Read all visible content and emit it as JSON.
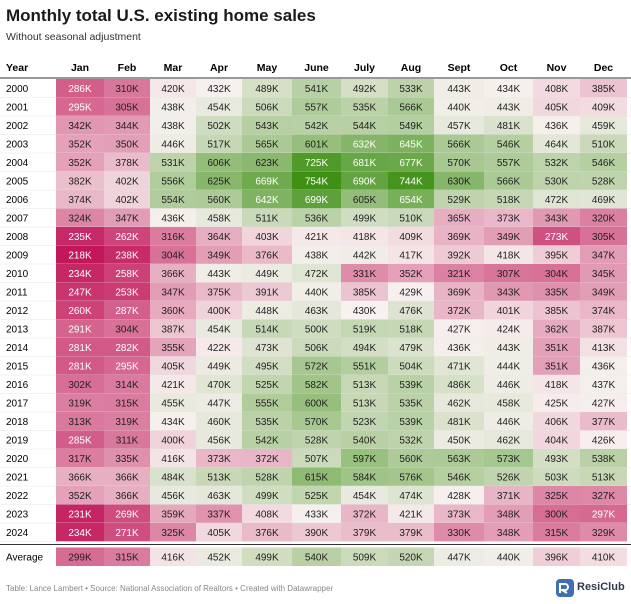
{
  "header": {
    "title": "Monthly total U.S. existing home sales",
    "subtitle": "Without seasonal adjustment"
  },
  "footer": {
    "source": "Table: Lance Lambert • Source: National Association of Realtors • Created with Datawrapper",
    "brand": "ResiClub"
  },
  "chart_data": {
    "type": "heatmap",
    "title": "Monthly total U.S. existing home sales",
    "subtitle": "Without seasonal adjustment",
    "corner_label": "Year",
    "columns": [
      "Jan",
      "Feb",
      "Mar",
      "Apr",
      "May",
      "June",
      "July",
      "Aug",
      "Sept",
      "Oct",
      "Nov",
      "Dec"
    ],
    "rows": [
      "2000",
      "2001",
      "2002",
      "2003",
      "2004",
      "2005",
      "2006",
      "2007",
      "2008",
      "2009",
      "2010",
      "2011",
      "2012",
      "2013",
      "2014",
      "2015",
      "2016",
      "2017",
      "2018",
      "2019",
      "2020",
      "2021",
      "2022",
      "2023",
      "2024"
    ],
    "values": [
      [
        286,
        310,
        420,
        432,
        489,
        541,
        492,
        533,
        443,
        434,
        408,
        385
      ],
      [
        295,
        305,
        438,
        454,
        506,
        557,
        535,
        566,
        440,
        443,
        405,
        409
      ],
      [
        342,
        344,
        438,
        502,
        543,
        542,
        544,
        549,
        457,
        481,
        436,
        459
      ],
      [
        352,
        350,
        446,
        517,
        565,
        601,
        632,
        645,
        566,
        546,
        464,
        510
      ],
      [
        352,
        378,
        531,
        606,
        623,
        725,
        681,
        677,
        570,
        557,
        532,
        546
      ],
      [
        382,
        402,
        556,
        625,
        669,
        754,
        690,
        744,
        630,
        566,
        530,
        528
      ],
      [
        374,
        402,
        554,
        560,
        642,
        699,
        605,
        654,
        529,
        518,
        472,
        469
      ],
      [
        324,
        347,
        436,
        458,
        511,
        536,
        499,
        510,
        365,
        373,
        343,
        320
      ],
      [
        235,
        262,
        316,
        364,
        403,
        421,
        418,
        409,
        369,
        349,
        273,
        305
      ],
      [
        218,
        238,
        304,
        349,
        376,
        438,
        442,
        417,
        392,
        418,
        395,
        347
      ],
      [
        234,
        258,
        366,
        443,
        449,
        472,
        331,
        352,
        321,
        307,
        304,
        345
      ],
      [
        247,
        253,
        347,
        375,
        391,
        440,
        385,
        429,
        369,
        343,
        335,
        349
      ],
      [
        260,
        287,
        360,
        400,
        448,
        463,
        430,
        476,
        372,
        401,
        385,
        374
      ],
      [
        291,
        304,
        387,
        454,
        514,
        500,
        519,
        518,
        427,
        424,
        362,
        387
      ],
      [
        281,
        282,
        355,
        422,
        473,
        506,
        494,
        479,
        436,
        443,
        351,
        413
      ],
      [
        281,
        295,
        405,
        449,
        495,
        572,
        551,
        504,
        471,
        444,
        351,
        436
      ],
      [
        302,
        314,
        421,
        470,
        525,
        582,
        513,
        539,
        486,
        446,
        418,
        437
      ],
      [
        319,
        315,
        455,
        447,
        555,
        600,
        513,
        535,
        462,
        458,
        425,
        427
      ],
      [
        313,
        319,
        434,
        460,
        535,
        570,
        523,
        539,
        481,
        446,
        406,
        377
      ],
      [
        285,
        311,
        400,
        456,
        542,
        528,
        540,
        532,
        450,
        462,
        404,
        426
      ],
      [
        317,
        335,
        416,
        373,
        372,
        507,
        597,
        560,
        563,
        573,
        493,
        538
      ],
      [
        366,
        366,
        484,
        513,
        528,
        615,
        584,
        576,
        546,
        526,
        503,
        513
      ],
      [
        352,
        366,
        456,
        463,
        499,
        525,
        454,
        474,
        428,
        371,
        325,
        327
      ],
      [
        231,
        269,
        359,
        337,
        408,
        433,
        372,
        421,
        373,
        348,
        300,
        297
      ],
      [
        234,
        271,
        325,
        405,
        376,
        390,
        379,
        379,
        330,
        348,
        315,
        329
      ]
    ],
    "average": [
      299,
      315,
      416,
      452,
      499,
      540,
      509,
      520,
      447,
      440,
      396,
      410
    ],
    "average_label": "Average",
    "unit_suffix": "K",
    "scale": {
      "min": 218,
      "mid": 430,
      "max": 754,
      "colors": [
        "#c2185b",
        "#f7f1ef",
        "#3f9116"
      ]
    }
  }
}
